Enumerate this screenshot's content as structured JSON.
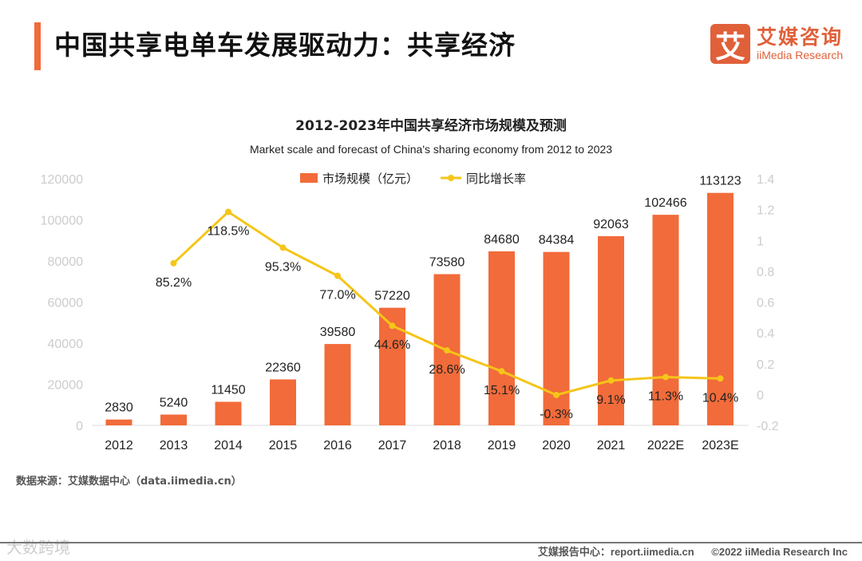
{
  "header": {
    "title": "中国共享电单车发展驱动力：共享经济",
    "logo_mark": "艾",
    "logo_cn": "艾媒咨询",
    "logo_en": "iiMedia Research"
  },
  "chart_data": {
    "type": "bar+line",
    "title": "2012-2023年中国共享经济市场规模及预测",
    "subtitle": "Market scale and forecast of China's sharing economy from 2012 to 2023",
    "categories": [
      "2012",
      "2013",
      "2014",
      "2015",
      "2016",
      "2017",
      "2018",
      "2019",
      "2020",
      "2021",
      "2022E",
      "2023E"
    ],
    "series": [
      {
        "name": "市场规模（亿元）",
        "type": "bar",
        "axis": "left",
        "color": "#f26b3a",
        "values": [
          2830,
          5240,
          11450,
          22360,
          39580,
          57220,
          73580,
          84680,
          84384,
          92063,
          102466,
          113123
        ],
        "labels": [
          "2830",
          "5240",
          "11450",
          "22360",
          "39580",
          "57220",
          "73580",
          "84680",
          "84384",
          "92063",
          "102466",
          "113123"
        ]
      },
      {
        "name": "同比增长率",
        "type": "line",
        "axis": "right",
        "color": "#f5c518",
        "values": [
          null,
          0.852,
          1.185,
          0.953,
          0.77,
          0.446,
          0.286,
          0.151,
          -0.003,
          0.091,
          0.113,
          0.104
        ],
        "labels": [
          "",
          "85.2%",
          "118.5%",
          "95.3%",
          "77.0%",
          "44.6%",
          "28.6%",
          "15.1%",
          "-0.3%",
          "9.1%",
          "11.3%",
          "10.4%"
        ]
      }
    ],
    "left_axis": {
      "ylim": [
        0,
        120000
      ],
      "ticks": [
        "0",
        "20000",
        "40000",
        "60000",
        "80000",
        "100000",
        "120000"
      ]
    },
    "right_axis": {
      "ylim": [
        -0.2,
        1.4
      ],
      "ticks": [
        "-0.2",
        "0",
        "0.2",
        "0.4",
        "0.6",
        "0.8",
        "1",
        "1.2",
        "1.4"
      ]
    },
    "legend": "top-center",
    "grid": false
  },
  "source": "数据来源：艾媒数据中心（data.iimedia.cn）",
  "watermark": "大数跨境",
  "footer": {
    "report": "艾媒报告中心：report.iimedia.cn",
    "copyright": "©2022  iiMedia Research  Inc"
  }
}
